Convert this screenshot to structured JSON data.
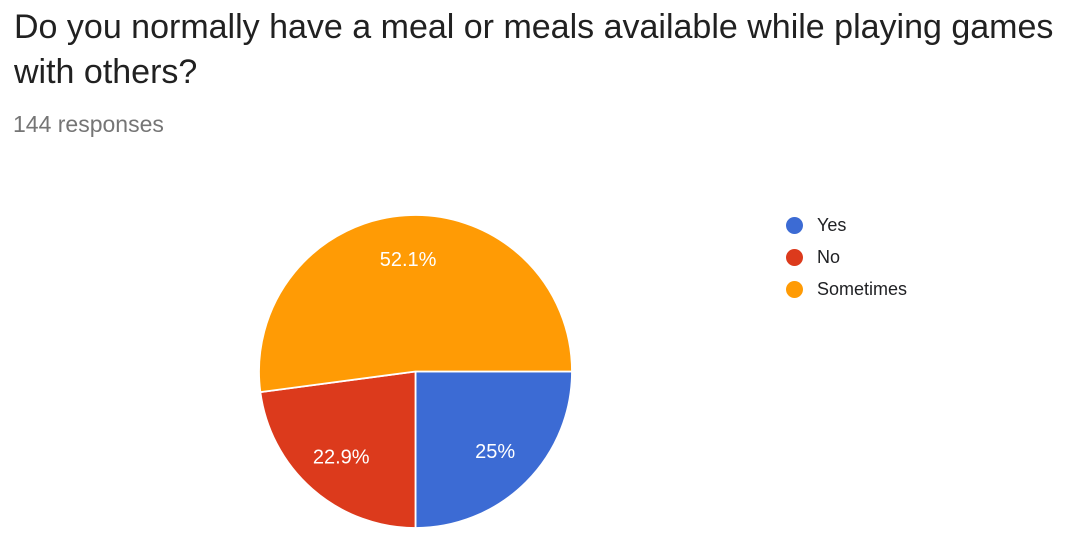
{
  "header": {
    "title": "Do you normally have a meal or meals available while playing games with others?",
    "responses_label": "144 responses"
  },
  "chart_data": {
    "type": "pie",
    "title": "Do you normally have a meal or meals available while playing games with others?",
    "subtitle": "144 responses",
    "total_responses": 144,
    "categories": [
      "Yes",
      "No",
      "Sometimes"
    ],
    "values": [
      25,
      22.9,
      52.1
    ],
    "value_unit": "percent",
    "slice_labels": [
      "25%",
      "22.9%",
      "52.1%"
    ],
    "colors": [
      "#3c6bd4",
      "#dc3a1c",
      "#ff9b05"
    ],
    "slice_label_color": "#ffffff",
    "separator_color": "#ffffff",
    "legend_position": "right",
    "start_angle": "3-oclock",
    "direction": "clockwise",
    "background": "#ffffff",
    "title_color": "#212121",
    "subtitle_color": "#757575"
  }
}
